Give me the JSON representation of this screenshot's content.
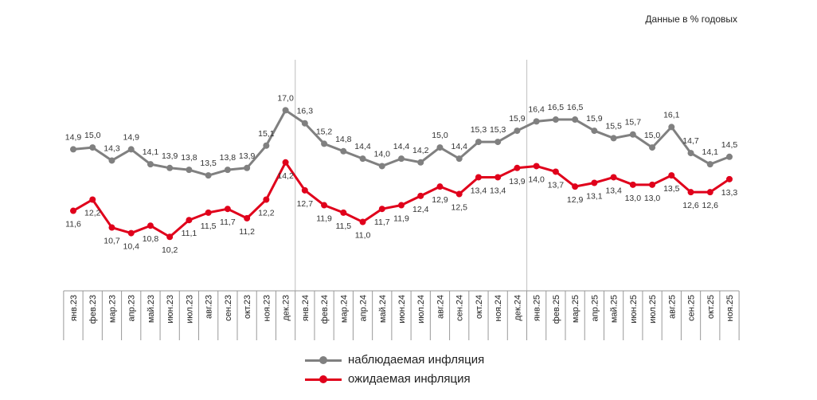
{
  "note": "Данные в % годовых",
  "chart_data": {
    "type": "line",
    "categories": [
      "янв.23",
      "фев.23",
      "мар.23",
      "апр.23",
      "май.23",
      "июн.23",
      "июл.23",
      "авг.23",
      "сен.23",
      "окт.23",
      "ноя.23",
      "дек.23",
      "янв.24",
      "фев.24",
      "мар.24",
      "апр.24",
      "май.24",
      "июн.24",
      "июл.24",
      "авг.24",
      "сен.24",
      "окт.24",
      "ноя.24",
      "дек.24",
      "янв.25",
      "фев.25",
      "мар.25",
      "апр.25",
      "май.25",
      "июн.25",
      "июл.25",
      "авг.25",
      "сен.25",
      "окт.25",
      "ноя.25"
    ],
    "series": [
      {
        "name": "наблюдаемая инфляция",
        "color": "#808080",
        "values": [
          14.9,
          15.0,
          14.3,
          14.9,
          14.1,
          13.9,
          13.8,
          13.5,
          13.8,
          13.9,
          15.1,
          17.0,
          16.3,
          15.2,
          14.8,
          14.4,
          14.0,
          14.4,
          14.2,
          15.0,
          14.4,
          15.3,
          15.3,
          15.9,
          16.4,
          16.5,
          16.5,
          15.9,
          15.5,
          15.7,
          15.0,
          16.1,
          14.7,
          14.1,
          14.5
        ]
      },
      {
        "name": "ожидаемая инфляция",
        "color": "#e0001b",
        "values": [
          11.6,
          12.2,
          10.7,
          10.4,
          10.8,
          10.2,
          11.1,
          11.5,
          11.7,
          11.2,
          12.2,
          14.2,
          12.7,
          11.9,
          11.5,
          11.0,
          11.7,
          11.9,
          12.4,
          12.9,
          12.5,
          13.4,
          13.4,
          13.9,
          14.0,
          13.7,
          12.9,
          13.1,
          13.4,
          13.0,
          13.0,
          13.5,
          12.6,
          12.6,
          13.3
        ]
      }
    ],
    "year_separators_after": [
      "дек.23",
      "дек.24"
    ],
    "ylim": [
      7.3,
      18
    ],
    "grid": false,
    "legend_position": "bottom",
    "data_labels": true
  }
}
